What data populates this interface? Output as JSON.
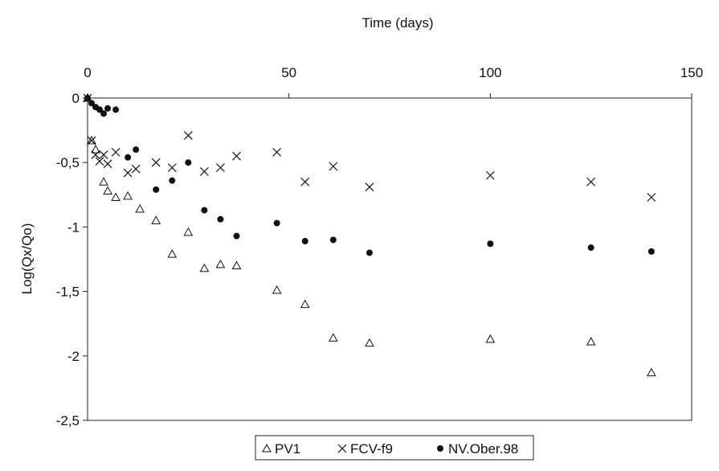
{
  "chart_data": {
    "type": "scatter",
    "title": "",
    "xlabel": "Time (days)",
    "ylabel": "Log(Qx/Qo)",
    "xlim": [
      0,
      150
    ],
    "ylim": [
      -2.5,
      0
    ],
    "x_ticks": [
      0,
      50,
      100,
      150
    ],
    "y_ticks": [
      0,
      -0.5,
      -1,
      -1.5,
      -2,
      -2.5
    ],
    "x_tick_labels": [
      "0",
      "50",
      "100",
      "150"
    ],
    "y_tick_labels": [
      "0",
      "-0,5",
      "-1",
      "-1,5",
      "-2",
      "-2,5"
    ],
    "x_axis_position": "top",
    "grid": false,
    "legend_position": "bottom-center",
    "series": [
      {
        "name": "PV1",
        "marker": "triangle",
        "points": [
          [
            0,
            0
          ],
          [
            1,
            -0.33
          ],
          [
            2,
            -0.4
          ],
          [
            4,
            -0.65
          ],
          [
            5,
            -0.72
          ],
          [
            7,
            -0.77
          ],
          [
            10,
            -0.76
          ],
          [
            13,
            -0.86
          ],
          [
            17,
            -0.95
          ],
          [
            21,
            -1.21
          ],
          [
            25,
            -1.04
          ],
          [
            29,
            -1.32
          ],
          [
            33,
            -1.29
          ],
          [
            37,
            -1.3
          ],
          [
            47,
            -1.49
          ],
          [
            54,
            -1.6
          ],
          [
            61,
            -1.86
          ],
          [
            70,
            -1.9
          ],
          [
            100,
            -1.87
          ],
          [
            125,
            -1.89
          ],
          [
            140,
            -2.13
          ]
        ]
      },
      {
        "name": "FCV-f9",
        "marker": "cross",
        "points": [
          [
            0,
            0
          ],
          [
            1,
            -0.33
          ],
          [
            2,
            -0.44
          ],
          [
            3,
            -0.49
          ],
          [
            4,
            -0.44
          ],
          [
            5,
            -0.51
          ],
          [
            7,
            -0.42
          ],
          [
            10,
            -0.58
          ],
          [
            12,
            -0.55
          ],
          [
            17,
            -0.5
          ],
          [
            21,
            -0.54
          ],
          [
            25,
            -0.29
          ],
          [
            29,
            -0.57
          ],
          [
            33,
            -0.54
          ],
          [
            37,
            -0.45
          ],
          [
            47,
            -0.42
          ],
          [
            54,
            -0.65
          ],
          [
            61,
            -0.53
          ],
          [
            70,
            -0.69
          ],
          [
            100,
            -0.6
          ],
          [
            125,
            -0.65
          ],
          [
            140,
            -0.77
          ]
        ]
      },
      {
        "name": "NV.Ober.98",
        "marker": "circle",
        "points": [
          [
            0,
            0
          ],
          [
            1,
            -0.04
          ],
          [
            2,
            -0.07
          ],
          [
            3,
            -0.09
          ],
          [
            4,
            -0.12
          ],
          [
            5,
            -0.08
          ],
          [
            7,
            -0.09
          ],
          [
            10,
            -0.46
          ],
          [
            12,
            -0.4
          ],
          [
            17,
            -0.71
          ],
          [
            21,
            -0.64
          ],
          [
            25,
            -0.5
          ],
          [
            29,
            -0.87
          ],
          [
            33,
            -0.94
          ],
          [
            37,
            -1.07
          ],
          [
            47,
            -0.97
          ],
          [
            54,
            -1.11
          ],
          [
            61,
            -1.1
          ],
          [
            70,
            -1.2
          ],
          [
            100,
            -1.13
          ],
          [
            125,
            -1.16
          ],
          [
            140,
            -1.19
          ]
        ]
      }
    ]
  }
}
